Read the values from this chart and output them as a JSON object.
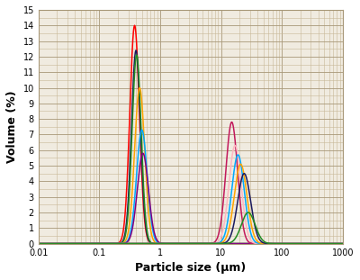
{
  "title": "",
  "xlabel": "Particle size (μm)",
  "ylabel": "Volume (%)",
  "xlim": [
    0.01,
    1000
  ],
  "ylim": [
    0,
    15
  ],
  "yticks": [
    0,
    1,
    2,
    3,
    4,
    5,
    6,
    7,
    8,
    9,
    10,
    11,
    12,
    13,
    14,
    15
  ],
  "background_color": "#f0ebe0",
  "fig_background": "#ffffff",
  "grid_color": "#a89878",
  "grid_minor_color": "#c8b898",
  "curves_left": [
    {
      "color": "#ff0000",
      "peak_x": 0.38,
      "peak_y": 14.0,
      "sigma": 0.18
    },
    {
      "color": "#1a1a5e",
      "peak_x": 0.4,
      "peak_y": 12.4,
      "sigma": 0.17
    },
    {
      "color": "#228B22",
      "peak_x": 0.41,
      "peak_y": 12.1,
      "sigma": 0.17
    },
    {
      "color": "#ffa500",
      "peak_x": 0.46,
      "peak_y": 10.0,
      "sigma": 0.19
    },
    {
      "color": "#00aaff",
      "peak_x": 0.5,
      "peak_y": 7.3,
      "sigma": 0.2
    },
    {
      "color": "#800080",
      "peak_x": 0.52,
      "peak_y": 5.8,
      "sigma": 0.21
    }
  ],
  "curves_right": [
    {
      "color": "#c2185b",
      "peak_x": 15.0,
      "peak_y": 7.8,
      "sigma": 0.22
    },
    {
      "color": "#ffb6c1",
      "peak_x": 17.0,
      "peak_y": 6.3,
      "sigma": 0.23
    },
    {
      "color": "#00aaff",
      "peak_x": 19.0,
      "peak_y": 5.7,
      "sigma": 0.235
    },
    {
      "color": "#ffa500",
      "peak_x": 21.0,
      "peak_y": 5.1,
      "sigma": 0.24
    },
    {
      "color": "#1a1a5e",
      "peak_x": 24.0,
      "peak_y": 4.5,
      "sigma": 0.245
    },
    {
      "color": "#228B22",
      "peak_x": 28.0,
      "peak_y": 2.0,
      "sigma": 0.26
    }
  ],
  "xtick_labels": [
    "0.01",
    "0.1",
    "1",
    "10",
    "100",
    "1000"
  ],
  "xtick_positions": [
    0.01,
    0.1,
    1,
    10,
    100,
    1000
  ],
  "xlabel_fontsize": 9,
  "ylabel_fontsize": 9,
  "tick_fontsize": 7
}
